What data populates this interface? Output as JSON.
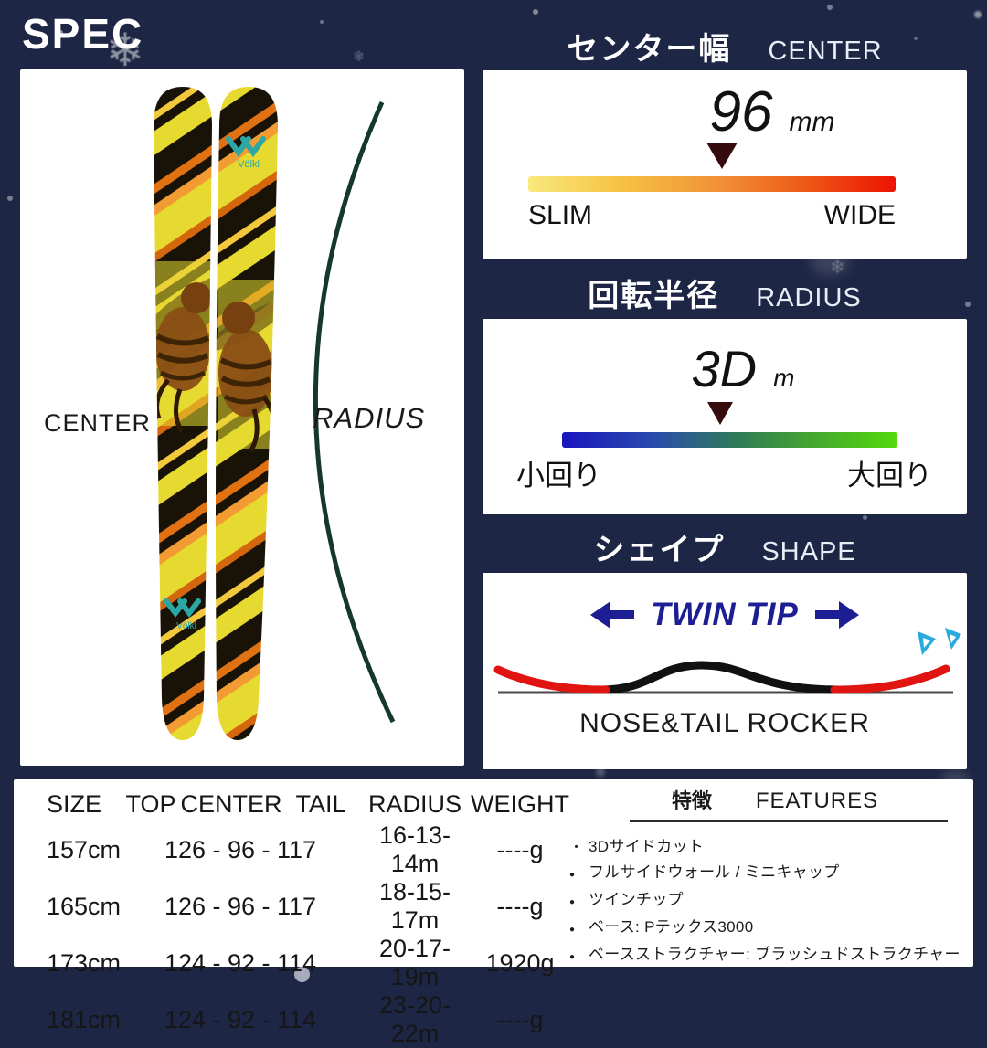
{
  "page": {
    "title": "SPEC"
  },
  "colors": {
    "background": "#1d2645",
    "panel": "#ffffff",
    "marker": "#350b0b",
    "twin_tip_navy": "#1d1d94",
    "rocker_red": "#e01410",
    "brand_teal": "#2ba8a6",
    "center_bar": [
      "#f9e97c",
      "#ec1203"
    ],
    "radius_bar": [
      "#1a15c0",
      "#55d90c"
    ]
  },
  "ski_panel": {
    "center_label": "CENTER",
    "radius_label": "RADIUS",
    "brand": "Völkl"
  },
  "sections": {
    "center": {
      "title_jp": "センター幅",
      "title_en": "CENTER",
      "value": "96",
      "unit": "mm",
      "left_label": "SLIM",
      "right_label": "WIDE",
      "marker_pct": 52.7
    },
    "radius": {
      "title_jp": "回転半径",
      "title_en": "RADIUS",
      "value": "3D",
      "unit": "m",
      "left_label": "小回り",
      "right_label": "大回り",
      "marker_pct": 47.1
    },
    "shape": {
      "title_jp": "シェイプ",
      "title_en": "SHAPE",
      "shape_label": "TWIN TIP",
      "rocker_label": "NOSE&TAIL ROCKER"
    }
  },
  "spec_table": {
    "headers": [
      "SIZE",
      "TOP",
      "CENTER",
      "TAIL",
      "RADIUS",
      "WEIGHT"
    ],
    "rows": [
      {
        "size": "157cm",
        "dimensions": "126 - 96 - 117",
        "radius": "16-13-14m",
        "weight": "----g"
      },
      {
        "size": "165cm",
        "dimensions": "126 - 96 - 117",
        "radius": "18-15-17m",
        "weight": "----g"
      },
      {
        "size": "173cm",
        "dimensions": "124 - 92 - 114",
        "radius": "20-17-19m",
        "weight": "1920g"
      },
      {
        "size": "181cm",
        "dimensions": "124 - 92 - 114",
        "radius": "23-20-22m",
        "weight": "----g"
      }
    ]
  },
  "features": {
    "title_jp": "特徴",
    "title_en": "FEATURES",
    "items": [
      {
        "bullet": "・",
        "text": "3Dサイドカット"
      },
      {
        "bullet": "●",
        "text": "フルサイドウォール / ミニキャップ"
      },
      {
        "bullet": "●",
        "text": "ツインチップ"
      },
      {
        "bullet": "●",
        "text": "ベース: Pテックス3000"
      },
      {
        "bullet": "●",
        "text": "ベースストラクチャー: ブラッシュドストラクチャー"
      }
    ]
  }
}
